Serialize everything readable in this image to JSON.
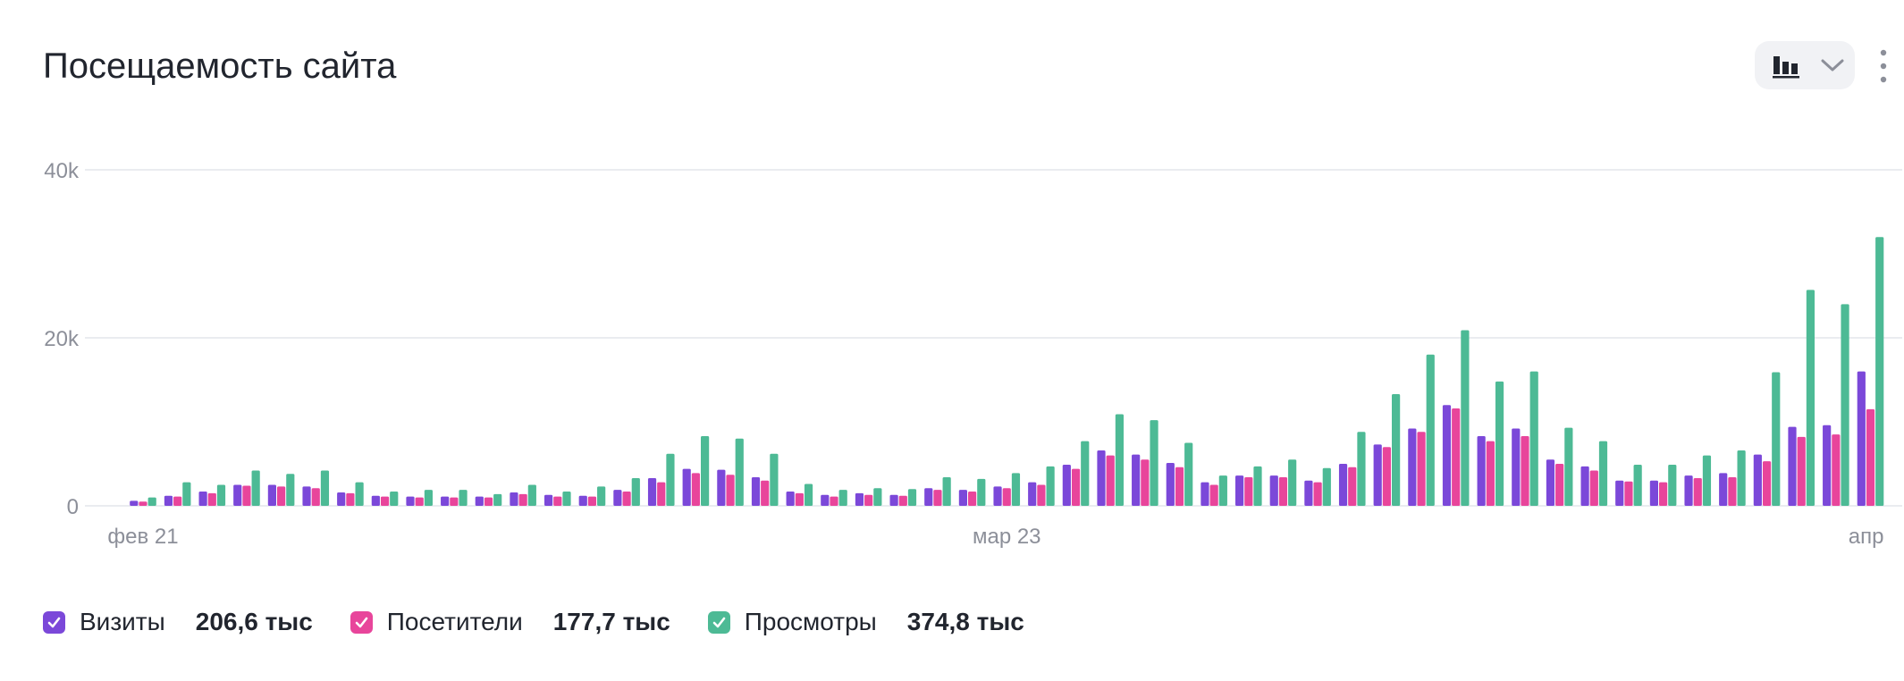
{
  "widget": {
    "title": "Посещаемость сайта",
    "view_switch_icon": "bar-chart-icon",
    "dropdown_icon": "chevron-down-icon",
    "menu_icon": "more-vertical-icon"
  },
  "colors": {
    "visits": "#7b48d9",
    "visitors": "#e8459b",
    "views": "#4dba95",
    "grid": "#e4e6eb",
    "axis_text": "#8c8f99"
  },
  "chart_data": {
    "type": "bar",
    "y_ticks": [
      "0",
      "20k",
      "40k"
    ],
    "ylim": [
      0,
      40000
    ],
    "x_tick_labels": [
      {
        "index": 0,
        "label": "фев 21"
      },
      {
        "index": 25,
        "label": "мар 23"
      },
      {
        "index": 50,
        "label": "апр"
      }
    ],
    "grid": true,
    "series": [
      {
        "name": "Визиты",
        "total": "206,6 тыс",
        "values": [
          600,
          1200,
          1700,
          2500,
          2500,
          2300,
          1600,
          1200,
          1100,
          1100,
          1100,
          1600,
          1300,
          1200,
          1900,
          3300,
          4400,
          4300,
          3400,
          1700,
          1300,
          1500,
          1300,
          2100,
          1900,
          2300,
          2800,
          4900,
          6600,
          6100,
          5100,
          2800,
          3600,
          3600,
          3000,
          5000,
          7300,
          9200,
          12000,
          8300,
          9200,
          5500,
          4700,
          3000,
          3000,
          3600,
          3900,
          6100,
          9400,
          9600,
          16000
        ]
      },
      {
        "name": "Посетители",
        "total": "177,7 тыс",
        "values": [
          500,
          1100,
          1500,
          2400,
          2300,
          2100,
          1500,
          1100,
          1000,
          1000,
          1000,
          1400,
          1100,
          1100,
          1700,
          2800,
          3900,
          3700,
          3000,
          1500,
          1100,
          1300,
          1200,
          1900,
          1700,
          2100,
          2500,
          4400,
          6000,
          5500,
          4600,
          2500,
          3400,
          3400,
          2800,
          4600,
          7000,
          8800,
          11600,
          7700,
          8300,
          5000,
          4200,
          2900,
          2800,
          3300,
          3400,
          5300,
          8200,
          8500,
          11500
        ]
      },
      {
        "name": "Просмотры",
        "total": "374,8 тыс",
        "values": [
          1000,
          2800,
          2500,
          4200,
          3800,
          4200,
          2800,
          1700,
          1900,
          1900,
          1400,
          2500,
          1700,
          2300,
          3300,
          6200,
          8300,
          8000,
          6200,
          2600,
          1900,
          2100,
          2000,
          3400,
          3200,
          3900,
          4700,
          7700,
          10900,
          10200,
          7500,
          3600,
          4700,
          5500,
          4500,
          8800,
          13300,
          18000,
          20900,
          14800,
          16000,
          9300,
          7700,
          4900,
          4900,
          6000,
          6600,
          15900,
          25700,
          24000,
          32000
        ]
      }
    ]
  }
}
